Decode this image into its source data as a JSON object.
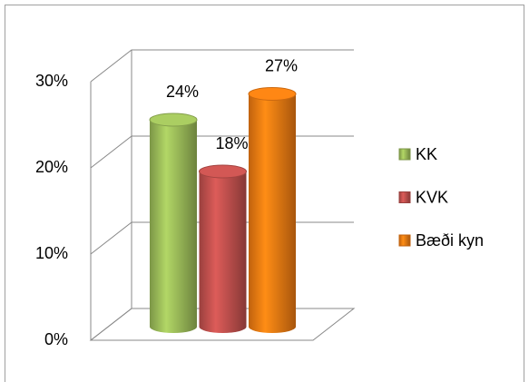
{
  "chart_data": {
    "type": "bar",
    "categories": [
      null
    ],
    "series": [
      {
        "name": "KK",
        "color": "#9bbb59",
        "values": [
          24
        ],
        "value_labels": [
          "24%"
        ]
      },
      {
        "name": "KVK",
        "color": "#c0504d",
        "values": [
          18
        ],
        "value_labels": [
          "18%"
        ]
      },
      {
        "name": "Bæði kyn",
        "color": "#f07b12",
        "values": [
          27
        ],
        "value_labels": [
          "27%"
        ]
      }
    ],
    "ylim": [
      0,
      30
    ],
    "yticks": [
      {
        "value": 0,
        "label": "0%"
      },
      {
        "value": 10,
        "label": "10%"
      },
      {
        "value": 20,
        "label": "20%"
      },
      {
        "value": 30,
        "label": "30%"
      }
    ],
    "grid": true,
    "legend": "right"
  }
}
